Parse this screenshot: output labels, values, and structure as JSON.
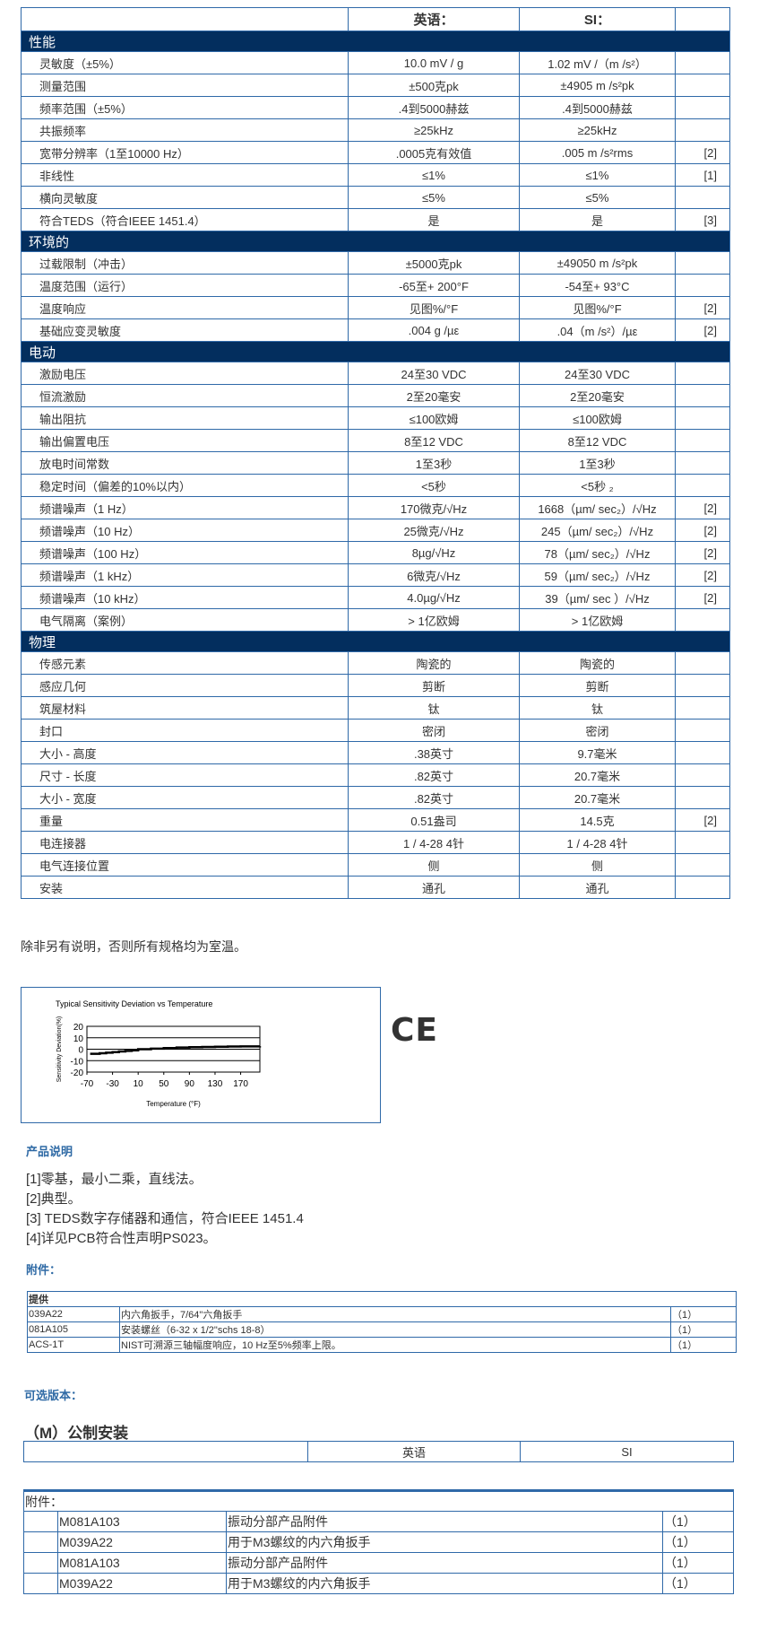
{
  "spec": {
    "header": {
      "english": "英语：",
      "si": "SI："
    },
    "sections": [
      {
        "title": "性能",
        "rows": [
          {
            "label": "灵敏度（±5%）",
            "english": "10.0 mV / g",
            "si": "1.02 mV /（m /s²）",
            "note": ""
          },
          {
            "label": "测量范围",
            "english": "±500克pk",
            "si": "±4905 m /s²pk",
            "note": ""
          },
          {
            "label": "频率范围（±5%）",
            "english": ".4到5000赫兹",
            "si": ".4到5000赫兹",
            "note": ""
          },
          {
            "label": "共振频率",
            "english": "≥25kHz",
            "si": "≥25kHz",
            "note": ""
          },
          {
            "label": "宽带分辨率（1至10000 Hz）",
            "english": ".0005克有效值",
            "si": ".005 m /s²rms",
            "note": "[2]"
          },
          {
            "label": "非线性",
            "english": "≤1%",
            "si": "≤1%",
            "note": "[1]"
          },
          {
            "label": "横向灵敏度",
            "english": "≤5%",
            "si": "≤5%",
            "note": ""
          },
          {
            "label": "符合TEDS（符合IEEE 1451.4）",
            "english": "是",
            "si": "是",
            "note": "[3]"
          }
        ]
      },
      {
        "title": "环境的",
        "rows": [
          {
            "label": "过载限制（冲击）",
            "english": "±5000克pk",
            "si": "±49050 m /s²pk",
            "note": ""
          },
          {
            "label": "温度范围（运行）",
            "english": "-65至+ 200°F",
            "si": "-54至+ 93°C",
            "note": ""
          },
          {
            "label": "温度响应",
            "english": "见图%/°F",
            "si": "见图%/°F",
            "note": "[2]"
          },
          {
            "label": "基础应变灵敏度",
            "english": ".004 g /µε",
            "si": ".04（m /s²）/µε",
            "note": "[2]"
          }
        ]
      },
      {
        "title": "电动",
        "rows": [
          {
            "label": "激励电压",
            "english": "24至30 VDC",
            "si": "24至30 VDC",
            "note": ""
          },
          {
            "label": "恒流激励",
            "english": "2至20毫安",
            "si": "2至20毫安",
            "note": ""
          },
          {
            "label": "输出阻抗",
            "english": "≤100欧姆",
            "si": "≤100欧姆",
            "note": ""
          },
          {
            "label": "输出偏置电压",
            "english": "8至12 VDC",
            "si": "8至12 VDC",
            "note": ""
          },
          {
            "label": "放电时间常数",
            "english": "1至3秒",
            "si": "1至3秒",
            "note": ""
          },
          {
            "label": "稳定时间（偏差的10%以内）",
            "english": "<5秒",
            "si": "<5秒 ₂",
            "note": ""
          },
          {
            "label": "频谱噪声（1 Hz）",
            "english": "170微克/√Hz",
            "si": "1668（µm/ sec₂）/√Hz",
            "note": "[2]"
          },
          {
            "label": "频谱噪声（10 Hz）",
            "english": "25微克/√Hz",
            "si": "245（µm/ sec₂）/√Hz",
            "note": "[2]"
          },
          {
            "label": "频谱噪声（100 Hz）",
            "english": "8µg/√Hz",
            "si": "78（µm/ sec₂）/√Hz",
            "note": "[2]"
          },
          {
            "label": "频谱噪声（1 kHz）",
            "english": "6微克/√Hz",
            "si": "59（µm/ sec₂）/√Hz",
            "note": "[2]"
          },
          {
            "label": "频谱噪声（10 kHz）",
            "english": "4.0µg/√Hz",
            "si": "39（µm/ sec  ）/√Hz",
            "note": "[2]"
          },
          {
            "label": "电气隔离（案例）",
            "english": "> 1亿欧姆",
            "si": "> 1亿欧姆",
            "note": ""
          }
        ]
      },
      {
        "title": "物理",
        "rows": [
          {
            "label": "传感元素",
            "english": "陶瓷的",
            "si": "陶瓷的",
            "note": ""
          },
          {
            "label": "感应几何",
            "english": "剪断",
            "si": "剪断",
            "note": ""
          },
          {
            "label": "筑屋材料",
            "english": "钛",
            "si": "钛",
            "note": ""
          },
          {
            "label": "封口",
            "english": "密闭",
            "si": "密闭",
            "note": ""
          },
          {
            "label": "大小 - 高度",
            "english": ".38英寸",
            "si": "9.7毫米",
            "note": ""
          },
          {
            "label": "尺寸 - 长度",
            "english": ".82英寸",
            "si": "20.7毫米",
            "note": ""
          },
          {
            "label": "大小 - 宽度",
            "english": ".82英寸",
            "si": "20.7毫米",
            "note": ""
          },
          {
            "label": "重量",
            "english": "0.51盎司",
            "si": "14.5克",
            "note": "[2]"
          },
          {
            "label": "电连接器",
            "english": "1 / 4-28 4针",
            "si": "1 / 4-28 4针",
            "note": ""
          },
          {
            "label": "电气连接位置",
            "english": "侧",
            "si": "侧",
            "note": ""
          },
          {
            "label": "安装",
            "english": "通孔",
            "si": "通孔",
            "note": ""
          }
        ]
      }
    ]
  },
  "room_temp_note": "除非另有说明，否则所有规格均为室温。",
  "chart_data": {
    "type": "line",
    "title": "Typical Sensitivity Deviation vs Temperature",
    "xlabel": "Temperature (°F)",
    "ylabel": "Sensitivity Deviation(%)",
    "xlim": [
      -70,
      200
    ],
    "ylim": [
      -20,
      20
    ],
    "xticks": [
      -70,
      -30,
      10,
      50,
      90,
      130,
      170
    ],
    "yticks": [
      20,
      10,
      0,
      -10,
      -20
    ],
    "grid": "horizontal",
    "x": [
      -65,
      -50,
      -40,
      -30,
      -20,
      -10,
      0,
      10,
      30,
      50,
      70,
      90,
      110,
      130,
      150,
      170,
      200
    ],
    "y": [
      -4,
      -3.5,
      -3,
      -2.5,
      -2,
      -1.5,
      -1,
      0,
      0.5,
      1,
      1.5,
      1.8,
      2,
      2.2,
      2.4,
      2.5,
      2.6
    ]
  },
  "ce_mark": "CE",
  "product_notes": {
    "title": "产品说明",
    "items": [
      "[1]零基，最小二乘，直线法。",
      "[2]典型。",
      "[3] TEDS数字存储器和通信，符合IEEE 1451.4",
      "[4]详见PCB符合性声明PS023。"
    ]
  },
  "accessories": {
    "title": "附件：",
    "header": "提供",
    "rows": [
      {
        "code": "039A22",
        "desc": "内六角扳手，7/64\"六角扳手",
        "qty": "（1）"
      },
      {
        "code": "081A105",
        "desc": "安装螺丝（6-32 x 1/2\"schs 18-8）",
        "qty": "（1）"
      },
      {
        "code": "ACS-1T",
        "desc": "NIST可溯源三轴幅度响应，10 Hz至5%频率上限。",
        "qty": "（1）"
      }
    ]
  },
  "optional_versions": {
    "title": "可选版本：",
    "metric": {
      "title": "（M）公制安装",
      "col_english": "英语",
      "col_si": "SI",
      "acc_title": "附件：",
      "acc_rows": [
        {
          "code": "M081A103",
          "desc": "振动分部产品附件",
          "qty": "（1）"
        },
        {
          "code": "M039A22",
          "desc": "用于M3螺纹的内六角扳手",
          "qty": "（1）"
        },
        {
          "code": "M081A103",
          "desc": "振动分部产品附件",
          "qty": "（1）"
        },
        {
          "code": "M039A22",
          "desc": "用于M3螺纹的内六角扳手",
          "qty": "（1）"
        }
      ]
    }
  },
  "colors": {
    "section_bg": "#032e5e",
    "border": "#2f69a8",
    "heading_blue": "#2f6aa5"
  }
}
